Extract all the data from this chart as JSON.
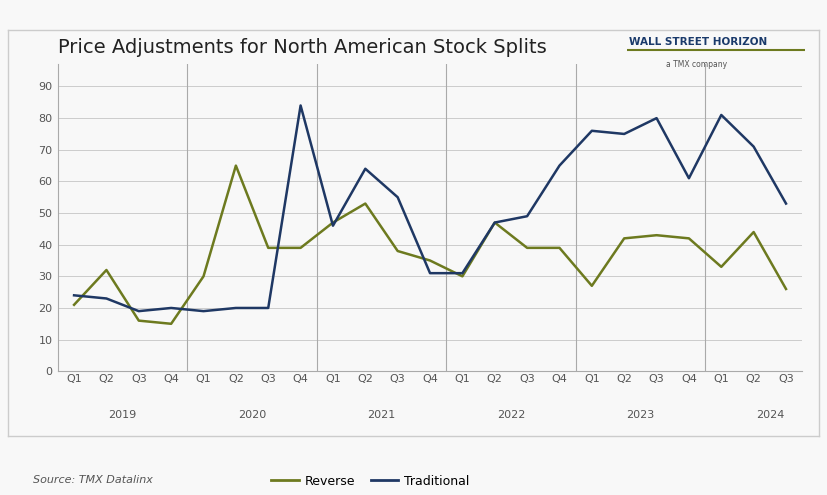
{
  "title": "Price Adjustments for North American Stock Splits",
  "source": "Source: TMX Datalinx",
  "xlabels": [
    "Q1",
    "Q2",
    "Q3",
    "Q4",
    "Q1",
    "Q2",
    "Q3",
    "Q4",
    "Q1",
    "Q2",
    "Q3",
    "Q4",
    "Q1",
    "Q2",
    "Q3",
    "Q4",
    "Q1",
    "Q2",
    "Q3",
    "Q4",
    "Q1",
    "Q2",
    "Q3"
  ],
  "year_labels": [
    "2019",
    "2020",
    "2021",
    "2022",
    "2023",
    "2024"
  ],
  "year_positions": [
    1.5,
    5.5,
    9.5,
    13.5,
    17.5,
    21.5
  ],
  "year_boundaries": [
    3.5,
    7.5,
    11.5,
    15.5,
    19.5
  ],
  "reverse": [
    21,
    32,
    16,
    15,
    30,
    65,
    39,
    39,
    47,
    53,
    38,
    35,
    30,
    47,
    39,
    39,
    27,
    42,
    43,
    42,
    33,
    44,
    26
  ],
  "traditional": [
    24,
    23,
    19,
    20,
    19,
    20,
    20,
    84,
    46,
    64,
    55,
    31,
    31,
    47,
    49,
    65,
    76,
    75,
    80,
    61,
    81,
    71,
    53
  ],
  "reverse_color": "#6d7a1f",
  "traditional_color": "#1f3864",
  "ylim": [
    0,
    97
  ],
  "yticks": [
    0,
    10,
    20,
    30,
    40,
    50,
    60,
    70,
    80,
    90
  ],
  "background_color": "#f5f5f5",
  "plot_bg_color": "#f5f5f5",
  "grid_color": "#cccccc",
  "line_width": 1.8,
  "title_fontsize": 14,
  "legend_fontsize": 9,
  "tick_fontsize": 8,
  "source_fontsize": 8
}
